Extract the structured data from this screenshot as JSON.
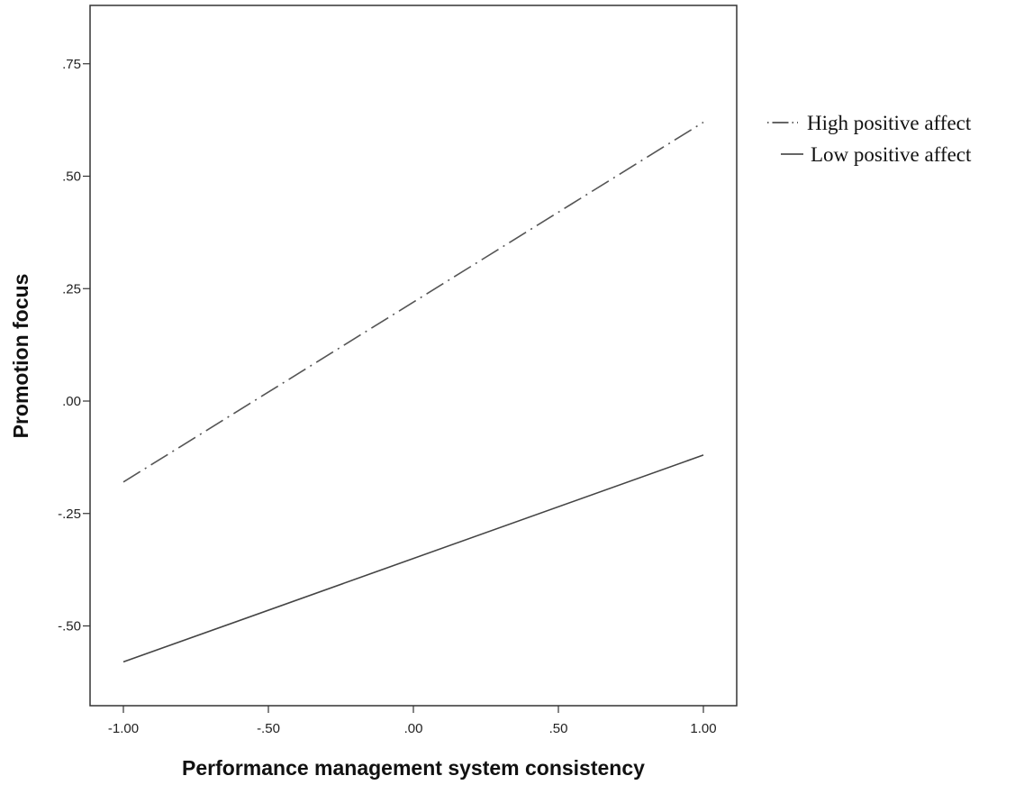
{
  "chart_data": {
    "type": "line",
    "xlabel": "Performance management system consistency",
    "ylabel": "Promotion focus",
    "xlim": [
      -1.0,
      1.0
    ],
    "ylim": [
      -0.68,
      0.88
    ],
    "x_ticks": [
      -1.0,
      -0.5,
      0.0,
      0.5,
      1.0
    ],
    "x_tick_labels": [
      "-1.00",
      "-.50",
      ".00",
      ".50",
      "1.00"
    ],
    "y_ticks": [
      -0.5,
      -0.25,
      0.0,
      0.25,
      0.5,
      0.75
    ],
    "y_tick_labels": [
      "-.50",
      "-.25",
      ".00",
      ".25",
      ".50",
      ".75"
    ],
    "grid": false,
    "legend_position": "right",
    "series": [
      {
        "name": "High positive affect",
        "style": "dash-dot",
        "color": "#555555",
        "x": [
          -1.0,
          1.0
        ],
        "y": [
          -0.18,
          0.62
        ]
      },
      {
        "name": "Low positive affect",
        "style": "solid",
        "color": "#444444",
        "x": [
          -1.0,
          1.0
        ],
        "y": [
          -0.58,
          -0.12
        ]
      }
    ]
  }
}
